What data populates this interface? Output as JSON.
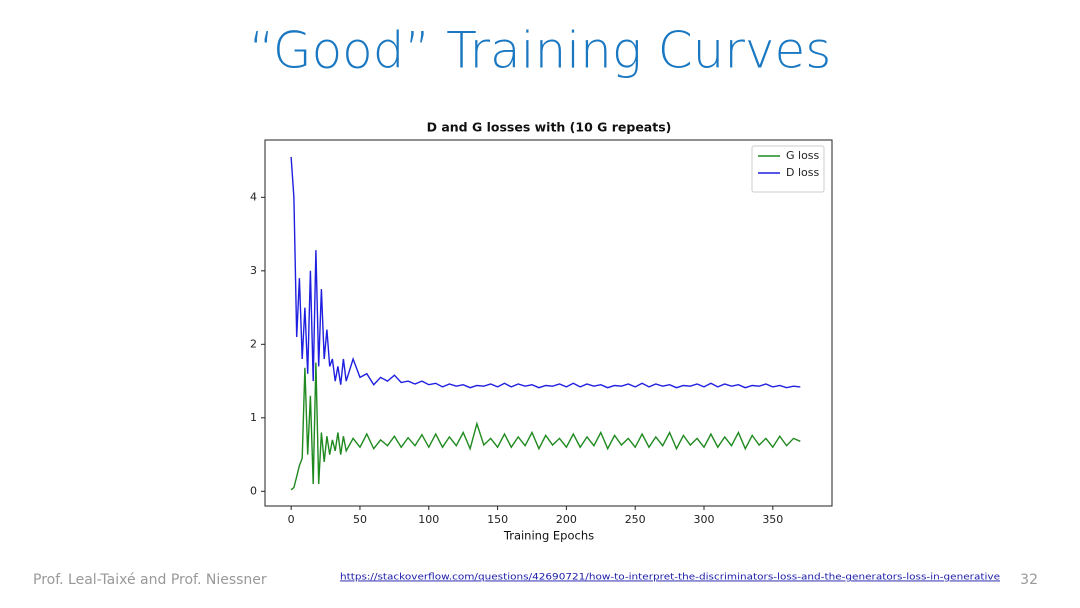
{
  "slide_title": "“Good” Training Curves",
  "footer": {
    "authors": "Prof. Leal-Taixé and Prof. Niessner",
    "link": "https://stackoverflow.com/questions/42690721/how-to-interpret-the-discriminators-loss-and-the-generators-loss-in-generative",
    "page": "32"
  },
  "chart_data": {
    "type": "line",
    "title": "D and G losses with (10 G repeats)",
    "x_label": "Training Epochs",
    "x": [
      0,
      2,
      4,
      6,
      8,
      10,
      12,
      14,
      16,
      18,
      20,
      22,
      24,
      26,
      28,
      30,
      32,
      34,
      36,
      38,
      40,
      45,
      50,
      55,
      60,
      65,
      70,
      75,
      80,
      85,
      90,
      95,
      100,
      105,
      110,
      115,
      120,
      125,
      130,
      135,
      140,
      145,
      150,
      155,
      160,
      165,
      170,
      175,
      180,
      185,
      190,
      195,
      200,
      205,
      210,
      215,
      220,
      225,
      230,
      235,
      240,
      245,
      250,
      255,
      260,
      265,
      270,
      275,
      280,
      285,
      290,
      295,
      300,
      305,
      310,
      315,
      320,
      325,
      330,
      335,
      340,
      345,
      350,
      355,
      360,
      365,
      370
    ],
    "series": [
      {
        "name": "G loss",
        "color": "#1f8a1f",
        "values": [
          0.02,
          0.05,
          0.2,
          0.35,
          0.45,
          1.68,
          0.5,
          1.3,
          0.1,
          1.75,
          0.1,
          0.8,
          0.4,
          0.75,
          0.5,
          0.7,
          0.55,
          0.8,
          0.5,
          0.75,
          0.55,
          0.72,
          0.6,
          0.78,
          0.58,
          0.7,
          0.62,
          0.75,
          0.6,
          0.73,
          0.62,
          0.77,
          0.6,
          0.78,
          0.6,
          0.74,
          0.62,
          0.8,
          0.58,
          0.92,
          0.63,
          0.72,
          0.6,
          0.78,
          0.6,
          0.74,
          0.62,
          0.8,
          0.58,
          0.76,
          0.63,
          0.72,
          0.6,
          0.78,
          0.6,
          0.74,
          0.62,
          0.8,
          0.58,
          0.76,
          0.63,
          0.72,
          0.6,
          0.78,
          0.6,
          0.74,
          0.62,
          0.8,
          0.58,
          0.76,
          0.63,
          0.72,
          0.6,
          0.78,
          0.6,
          0.74,
          0.62,
          0.8,
          0.58,
          0.76,
          0.63,
          0.72,
          0.6,
          0.75,
          0.62,
          0.72,
          0.68
        ]
      },
      {
        "name": "D loss",
        "color": "#1f1fe0",
        "values": [
          4.55,
          4.0,
          2.1,
          2.9,
          1.8,
          2.5,
          1.6,
          3.0,
          1.5,
          3.28,
          1.7,
          2.75,
          1.8,
          2.2,
          1.7,
          1.8,
          1.5,
          1.7,
          1.45,
          1.8,
          1.5,
          1.8,
          1.55,
          1.6,
          1.45,
          1.55,
          1.5,
          1.58,
          1.48,
          1.5,
          1.46,
          1.5,
          1.45,
          1.47,
          1.42,
          1.46,
          1.43,
          1.45,
          1.41,
          1.44,
          1.43,
          1.46,
          1.42,
          1.47,
          1.42,
          1.46,
          1.43,
          1.45,
          1.41,
          1.44,
          1.43,
          1.46,
          1.42,
          1.47,
          1.42,
          1.46,
          1.43,
          1.45,
          1.41,
          1.44,
          1.43,
          1.46,
          1.42,
          1.47,
          1.42,
          1.46,
          1.43,
          1.45,
          1.41,
          1.44,
          1.43,
          1.46,
          1.42,
          1.47,
          1.42,
          1.46,
          1.43,
          1.45,
          1.41,
          1.44,
          1.43,
          1.46,
          1.42,
          1.44,
          1.41,
          1.43,
          1.42
        ]
      }
    ],
    "xlim": [
      -19,
      393
    ],
    "ylim": [
      -0.2,
      4.78
    ],
    "xticks": [
      0,
      50,
      100,
      150,
      200,
      250,
      300,
      350
    ],
    "yticks": [
      0,
      1,
      2,
      3,
      4
    ],
    "legend": "upper right"
  }
}
